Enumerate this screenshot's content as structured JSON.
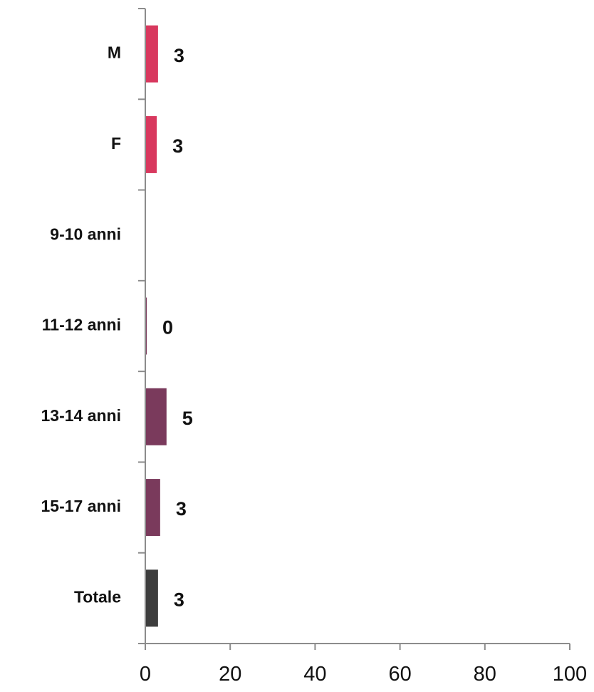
{
  "chart_data": {
    "type": "bar",
    "orientation": "horizontal",
    "categories": [
      "M",
      "F",
      "9-10 anni",
      "11-12 anni",
      "13-14 anni",
      "15-17 anni",
      "Totale"
    ],
    "values": [
      3,
      2.7,
      null,
      0.3,
      5,
      3.5,
      3
    ],
    "data_labels": [
      "3",
      "3",
      "",
      "0",
      "5",
      "3",
      "3"
    ],
    "bar_colors": [
      "#d8385e",
      "#d8385e",
      "#7a3a5c",
      "#7a3a5c",
      "#7a3a5c",
      "#7a3a5c",
      "#3d3d3d"
    ],
    "xlim": [
      0,
      100
    ],
    "xticks": [
      "0",
      "20",
      "40",
      "60",
      "80",
      "100"
    ],
    "title": "",
    "xlabel": "",
    "ylabel": "",
    "grid": false,
    "legend": "none"
  }
}
